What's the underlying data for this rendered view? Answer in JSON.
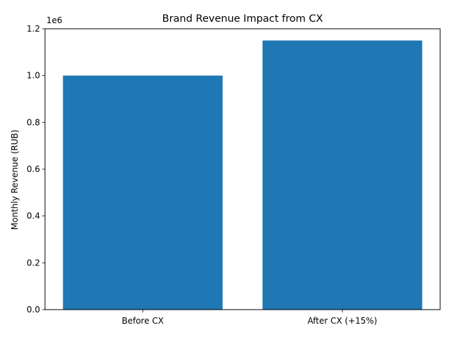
{
  "chart_data": {
    "type": "bar",
    "title": "Brand Revenue Impact from CX",
    "xlabel": "",
    "ylabel": "Monthly Revenue (RUB)",
    "categories": [
      "Before CX",
      "After CX (+15%)"
    ],
    "values": [
      1000000,
      1150000
    ],
    "ylim": [
      0,
      1200000
    ],
    "y_offset_label": "1e6",
    "yticks": [
      0,
      200000,
      400000,
      600000,
      800000,
      1000000,
      1200000
    ],
    "ytick_labels": [
      "0.0",
      "0.2",
      "0.4",
      "0.6",
      "0.8",
      "1.0",
      "1.2"
    ],
    "bar_color": "#1f77b4",
    "grid": false,
    "legend": "none"
  }
}
